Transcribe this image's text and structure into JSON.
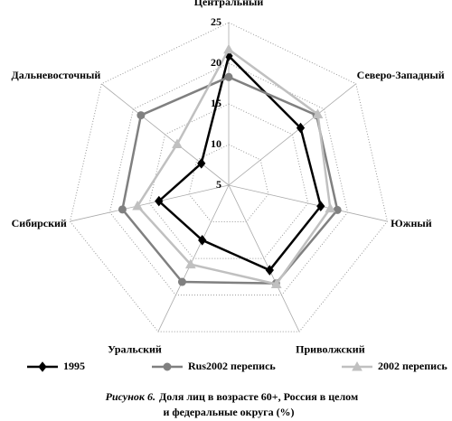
{
  "chart_data": {
    "type": "radar",
    "categories": [
      "Центральный",
      "Северо-Западный",
      "Южный",
      "Приволжский",
      "Уральский",
      "Сибирский",
      "Дальневосточный"
    ],
    "series": [
      {
        "name": "1995",
        "color": "#000000",
        "marker": "diamond",
        "values": [
          20.9,
          16.3,
          16.6,
          16.6,
          12.5,
          13.8,
          9.3
        ]
      },
      {
        "name": "Rus2002 перепись",
        "color": "#808080",
        "marker": "circle",
        "values": [
          18.3,
          18.8,
          18.7,
          18.4,
          18.2,
          18.4,
          18.8
        ]
      },
      {
        "name": "2002 перепись",
        "color": "#c0c0c0",
        "marker": "triangle",
        "values": [
          21.7,
          19,
          17.8,
          18.5,
          15.8,
          16.5,
          13.1
        ]
      }
    ],
    "ylim": [
      5,
      25
    ],
    "yticks": [
      5,
      10,
      15,
      20,
      25
    ],
    "grid": true,
    "caption_prefix": "Рисунок 6.",
    "title": [
      "Доля лиц в возрасте 60+, Россия в целом",
      "и федеральные округа (%)"
    ]
  }
}
